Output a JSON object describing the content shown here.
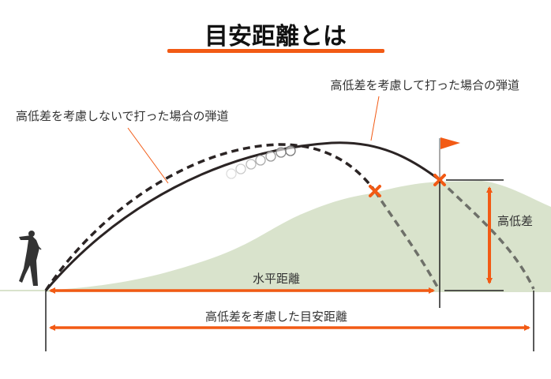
{
  "title": "目安距離とは",
  "labels": {
    "with_elevation": "高低差を考慮して打った場合の弾道",
    "without_elevation": "高低差を考慮しないで打った場合の弾道",
    "elevation_difference": "高低差",
    "horizontal_distance": "水平距離",
    "adjusted_distance": "高低差を考慮した目安距離"
  },
  "colors": {
    "accent": "#f25a14",
    "hill": "#d9e3cc",
    "trajectory": "#2b2424",
    "dashed_descent": "#6e7069"
  }
}
